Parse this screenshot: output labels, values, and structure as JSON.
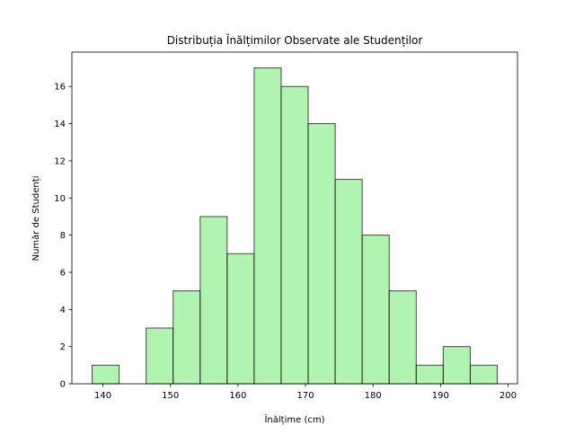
{
  "chart_data": {
    "type": "bar",
    "title": "Distribuția Înălțimilor Observate ale Studenților",
    "xlabel": "Înălțime (cm)",
    "ylabel": "Număr de Studenți",
    "bins": [
      {
        "x0": 138.4,
        "x1": 142.4,
        "value": 1
      },
      {
        "x0": 142.4,
        "x1": 146.4,
        "value": 0
      },
      {
        "x0": 146.4,
        "x1": 150.4,
        "value": 3
      },
      {
        "x0": 150.4,
        "x1": 154.4,
        "value": 5
      },
      {
        "x0": 154.4,
        "x1": 158.4,
        "value": 9
      },
      {
        "x0": 158.4,
        "x1": 162.4,
        "value": 7
      },
      {
        "x0": 162.4,
        "x1": 166.4,
        "value": 17
      },
      {
        "x0": 166.4,
        "x1": 170.4,
        "value": 16
      },
      {
        "x0": 170.4,
        "x1": 174.4,
        "value": 14
      },
      {
        "x0": 174.4,
        "x1": 178.4,
        "value": 11
      },
      {
        "x0": 178.4,
        "x1": 182.4,
        "value": 8
      },
      {
        "x0": 182.4,
        "x1": 186.4,
        "value": 5
      },
      {
        "x0": 186.4,
        "x1": 190.4,
        "value": 1
      },
      {
        "x0": 190.4,
        "x1": 194.4,
        "value": 2
      },
      {
        "x0": 194.4,
        "x1": 198.4,
        "value": 1
      }
    ],
    "xlim": [
      135.4,
      201.4
    ],
    "ylim": [
      0,
      17.85
    ],
    "xticks": [
      140,
      150,
      160,
      170,
      180,
      190,
      200
    ],
    "yticks": [
      0,
      2,
      4,
      6,
      8,
      10,
      12,
      14,
      16
    ],
    "bar_color": "#90ee90",
    "edge_color": "#000000",
    "grid": false,
    "legend": "none"
  }
}
